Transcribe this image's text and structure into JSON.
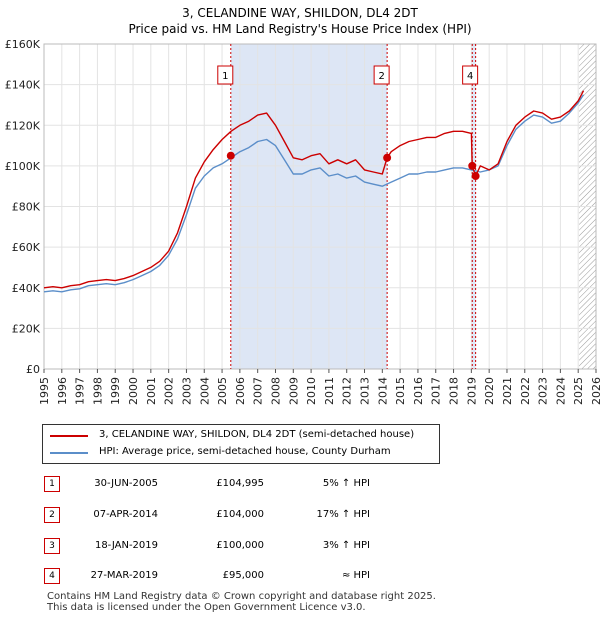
{
  "chart_data": {
    "type": "line",
    "title": "3, CELANDINE WAY, SHILDON, DL4 2DT",
    "subtitle": "Price paid vs. HM Land Registry's House Price Index (HPI)",
    "xlabel": "",
    "ylabel": "",
    "xlim": [
      1995,
      2026
    ],
    "ylim": [
      0,
      160000
    ],
    "x_ticks": [
      "1995",
      "1996",
      "1997",
      "1998",
      "1999",
      "2000",
      "2001",
      "2002",
      "2003",
      "2004",
      "2005",
      "2006",
      "2007",
      "2008",
      "2009",
      "2010",
      "2011",
      "2012",
      "2013",
      "2014",
      "2015",
      "2016",
      "2017",
      "2018",
      "2019",
      "2020",
      "2021",
      "2022",
      "2023",
      "2024",
      "2025",
      "2026"
    ],
    "y_ticks": [
      {
        "value": 0,
        "label": "£0"
      },
      {
        "value": 20000,
        "label": "£20K"
      },
      {
        "value": 40000,
        "label": "£40K"
      },
      {
        "value": 60000,
        "label": "£60K"
      },
      {
        "value": 80000,
        "label": "£80K"
      },
      {
        "value": 100000,
        "label": "£100K"
      },
      {
        "value": 120000,
        "label": "£120K"
      },
      {
        "value": 140000,
        "label": "£140K"
      },
      {
        "value": 160000,
        "label": "£160K"
      }
    ],
    "grid": true,
    "shaded_periods": [
      [
        2005.5,
        2014.27
      ],
      [
        2019.05,
        2019.24
      ]
    ],
    "forecast_start": 2025.05,
    "series": [
      {
        "name": "3, CELANDINE WAY, SHILDON, DL4 2DT (semi-detached house)",
        "color": "#cc0000",
        "x": [
          1995.0,
          1995.5,
          1996.0,
          1996.5,
          1997.0,
          1997.5,
          1998.0,
          1998.5,
          1999.0,
          1999.5,
          2000.0,
          2000.5,
          2001.0,
          2001.5,
          2002.0,
          2002.5,
          2003.0,
          2003.5,
          2004.0,
          2004.5,
          2005.0,
          2005.5,
          2006.0,
          2006.5,
          2007.0,
          2007.5,
          2008.0,
          2008.5,
          2009.0,
          2009.5,
          2010.0,
          2010.5,
          2011.0,
          2011.5,
          2012.0,
          2012.5,
          2013.0,
          2013.5,
          2014.0,
          2014.27,
          2014.5,
          2015.0,
          2015.5,
          2016.0,
          2016.5,
          2017.0,
          2017.5,
          2018.0,
          2018.5,
          2019.0,
          2019.05,
          2019.24,
          2019.5,
          2020.0,
          2020.5,
          2021.0,
          2021.5,
          2022.0,
          2022.5,
          2023.0,
          2023.5,
          2024.0,
          2024.5,
          2025.0,
          2025.3
        ],
        "values": [
          40000,
          40500,
          40000,
          41000,
          41500,
          43000,
          43500,
          44000,
          43500,
          44500,
          46000,
          48000,
          50000,
          53000,
          58000,
          67000,
          80000,
          94000,
          102000,
          108000,
          113000,
          117000,
          120000,
          122000,
          125000,
          126000,
          120000,
          112000,
          104000,
          103000,
          105000,
          106000,
          101000,
          103000,
          101000,
          103000,
          98000,
          97000,
          96000,
          104000,
          107000,
          110000,
          112000,
          113000,
          114000,
          114000,
          116000,
          117000,
          117000,
          116000,
          100000,
          95000,
          100000,
          98000,
          101000,
          112000,
          120000,
          124000,
          127000,
          126000,
          123000,
          124000,
          127000,
          132000,
          137000
        ]
      },
      {
        "name": "HPI: Average price, semi-detached house, County Durham",
        "color": "#5b8ec9",
        "x": [
          1995.0,
          1995.5,
          1996.0,
          1996.5,
          1997.0,
          1997.5,
          1998.0,
          1998.5,
          1999.0,
          1999.5,
          2000.0,
          2000.5,
          2001.0,
          2001.5,
          2002.0,
          2002.5,
          2003.0,
          2003.5,
          2004.0,
          2004.5,
          2005.0,
          2005.5,
          2006.0,
          2006.5,
          2007.0,
          2007.5,
          2008.0,
          2008.5,
          2009.0,
          2009.5,
          2010.0,
          2010.5,
          2011.0,
          2011.5,
          2012.0,
          2012.5,
          2013.0,
          2013.5,
          2014.0,
          2014.5,
          2015.0,
          2015.5,
          2016.0,
          2016.5,
          2017.0,
          2017.5,
          2018.0,
          2018.5,
          2019.0,
          2019.5,
          2020.0,
          2020.5,
          2021.0,
          2021.5,
          2022.0,
          2022.5,
          2023.0,
          2023.5,
          2024.0,
          2024.5,
          2025.0,
          2025.3
        ],
        "values": [
          38000,
          38500,
          38000,
          39000,
          39500,
          41000,
          41500,
          42000,
          41500,
          42500,
          44000,
          46000,
          48000,
          51000,
          56000,
          64000,
          76000,
          89000,
          95000,
          99000,
          101000,
          104000,
          107000,
          109000,
          112000,
          113000,
          110000,
          103000,
          96000,
          96000,
          98000,
          99000,
          95000,
          96000,
          94000,
          95000,
          92000,
          91000,
          90000,
          92000,
          94000,
          96000,
          96000,
          97000,
          97000,
          98000,
          99000,
          99000,
          98000,
          97000,
          98000,
          100000,
          110000,
          118000,
          122000,
          125000,
          124000,
          121000,
          122000,
          126000,
          131000,
          135000
        ]
      }
    ],
    "sale_points": [
      {
        "label": "1",
        "x": 2005.49,
        "y": 104995
      },
      {
        "label": "2",
        "x": 2014.27,
        "y": 104000
      },
      {
        "label": "3",
        "x": 2019.05,
        "y": 100000
      },
      {
        "label": "4",
        "x": 2019.24,
        "y": 95000
      }
    ],
    "marker_lines": [
      {
        "label": "1",
        "x": 2005.49
      },
      {
        "label": "2",
        "x": 2014.27
      },
      {
        "label": "3",
        "x": 2019.05
      },
      {
        "label": "4",
        "x": 2019.24
      }
    ],
    "legend_position": "below"
  },
  "legend": {
    "property_label": "3, CELANDINE WAY, SHILDON, DL4 2DT (semi-detached house)",
    "hpi_label": "HPI: Average price, semi-detached house, County Durham",
    "property_color": "#cc0000",
    "hpi_color": "#5b8ec9"
  },
  "transactions": [
    {
      "num": "1",
      "date": "30-JUN-2005",
      "price": "£104,995",
      "hpi": "5% ↑ HPI"
    },
    {
      "num": "2",
      "date": "07-APR-2014",
      "price": "£104,000",
      "hpi": "17% ↑ HPI"
    },
    {
      "num": "3",
      "date": "18-JAN-2019",
      "price": "£100,000",
      "hpi": "3% ↑ HPI"
    },
    {
      "num": "4",
      "date": "27-MAR-2019",
      "price": "£95,000",
      "hpi": "≈ HPI"
    }
  ],
  "footer": {
    "line1": "Contains HM Land Registry data © Crown copyright and database right 2025.",
    "line2": "This data is licensed under the Open Government Licence v3.0."
  }
}
